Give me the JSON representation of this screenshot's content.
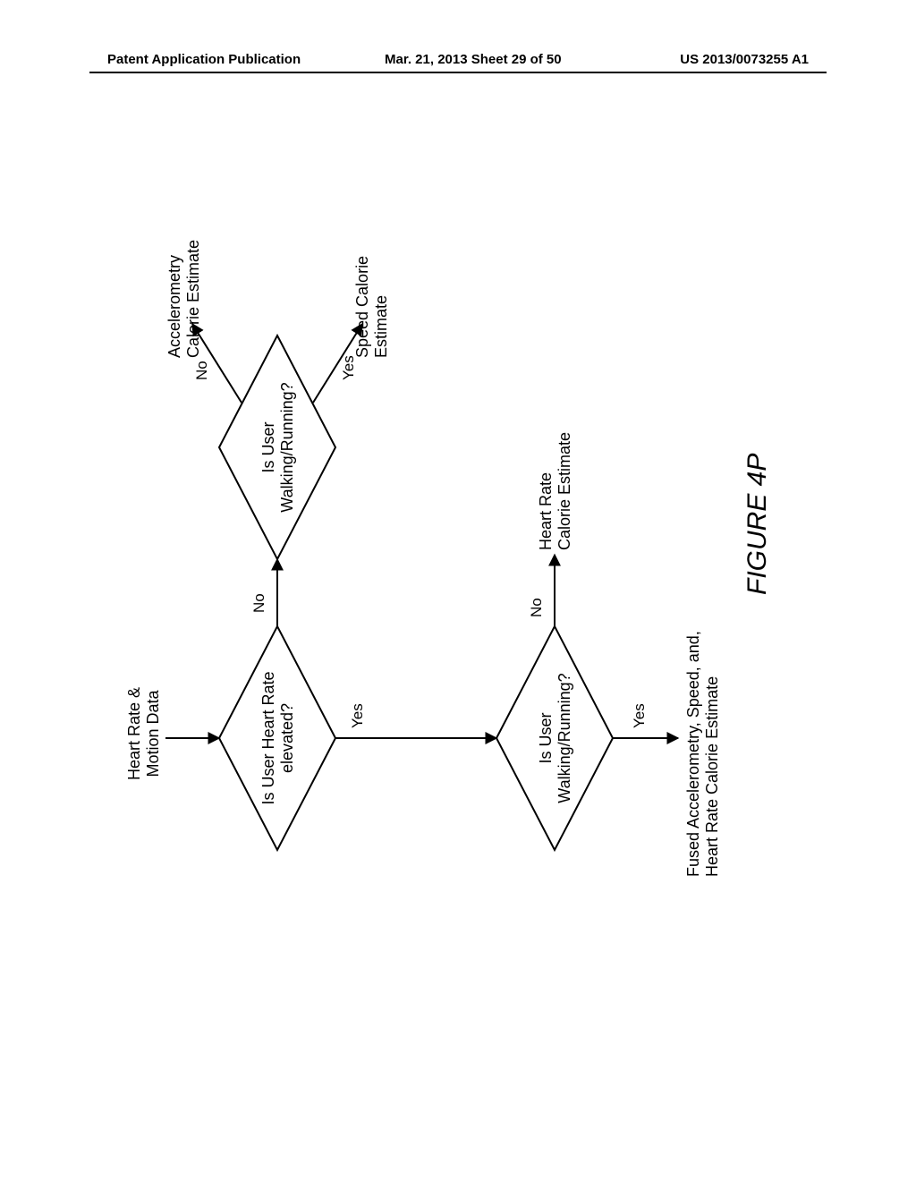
{
  "header": {
    "left": "Patent Application Publication",
    "center": "Mar. 21, 2013  Sheet 29 of 50",
    "right": "US 2013/0073255 A1"
  },
  "figure": {
    "label": "FIGURE 4P",
    "nodes": {
      "input": {
        "text": "Heart Rate &\nMotion Data"
      },
      "d1": {
        "text": "Is User Heart Rate\nelevated?"
      },
      "d2": {
        "text": "Is User\nWalking/Running?"
      },
      "d3": {
        "text": "Is User\nWalking/Running?"
      },
      "out_accel": {
        "text": "Accelerometry\nCalorie Estimate"
      },
      "out_speed": {
        "text": "Speed Calorie\nEstimate"
      },
      "out_hr": {
        "text": "Heart Rate\nCalorie Estimate"
      },
      "out_fused": {
        "text": "Fused Accelerometry, Speed, and,\nHeart Rate Calorie Estimate"
      }
    },
    "edges": {
      "d1_no": {
        "text": "No"
      },
      "d1_yes": {
        "text": "Yes"
      },
      "d2_no": {
        "text": "No"
      },
      "d2_yes": {
        "text": "Yes"
      },
      "d3_no": {
        "text": "No"
      },
      "d3_yes": {
        "text": "Yes"
      }
    },
    "style": {
      "stroke": "#000000",
      "stroke_width": 2,
      "diamond_w": 250,
      "diamond_h": 130,
      "font_family": "Arial",
      "text_color": "#000000",
      "bg": "#ffffff"
    },
    "layout_note": "flowchart rotated -90deg as in original landscape figure on portrait page"
  }
}
